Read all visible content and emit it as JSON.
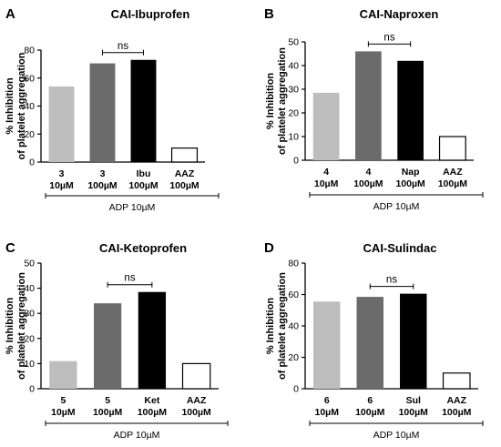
{
  "chart_data": [
    {
      "type": "bar",
      "letter": "A",
      "title": "CAI-Ibuprofen",
      "ylabel_line1": "% Inhibition",
      "ylabel_line2": "of platelet aggregation",
      "ylim": [
        0,
        80
      ],
      "yticks": [
        "0",
        "20",
        "40",
        "60",
        "80"
      ],
      "categories": [
        {
          "line1": "3",
          "line2": "10µM"
        },
        {
          "line1": "3",
          "line2": "100µM"
        },
        {
          "line1": "Ibu",
          "line2": "100µM"
        },
        {
          "line1": "AAZ",
          "line2": "100µM"
        }
      ],
      "values": [
        54,
        70.5,
        73,
        10
      ],
      "colors": [
        "#bdbdbd",
        "#6b6b6b",
        "#000000",
        "#ffffff"
      ],
      "significance": {
        "label": "ns",
        "from": 1,
        "to": 2
      },
      "xnote": "ADP 10µM"
    },
    {
      "type": "bar",
      "letter": "B",
      "title": "CAI-Naproxen",
      "ylabel_line1": "% Inhibition",
      "ylabel_line2": "of platelet aggregation",
      "ylim": [
        0,
        50
      ],
      "yticks": [
        "0",
        "10",
        "20",
        "30",
        "40",
        "50"
      ],
      "categories": [
        {
          "line1": "4",
          "line2": "10µM"
        },
        {
          "line1": "4",
          "line2": "100µM"
        },
        {
          "line1": "Nap",
          "line2": "100µM"
        },
        {
          "line1": "AAZ",
          "line2": "100µM"
        }
      ],
      "values": [
        28.5,
        46,
        42,
        10
      ],
      "colors": [
        "#bdbdbd",
        "#6b6b6b",
        "#000000",
        "#ffffff"
      ],
      "significance": {
        "label": "ns",
        "from": 1,
        "to": 2
      },
      "xnote": "ADP 10µM"
    },
    {
      "type": "bar",
      "letter": "C",
      "title": "CAI-Ketoprofen",
      "ylabel_line1": "% Inhibition",
      "ylabel_line2": "of platelet aggregation",
      "ylim": [
        0,
        50
      ],
      "yticks": [
        "0",
        "10",
        "20",
        "30",
        "40",
        "50"
      ],
      "categories": [
        {
          "line1": "5",
          "line2": "10µM"
        },
        {
          "line1": "5",
          "line2": "100µM"
        },
        {
          "line1": "Ket",
          "line2": "100µM"
        },
        {
          "line1": "AAZ",
          "line2": "100µM"
        }
      ],
      "values": [
        11,
        34,
        38.5,
        10
      ],
      "colors": [
        "#bdbdbd",
        "#6b6b6b",
        "#000000",
        "#ffffff"
      ],
      "significance": {
        "label": "ns",
        "from": 1,
        "to": 2
      },
      "xnote": "ADP 10µM"
    },
    {
      "type": "bar",
      "letter": "D",
      "title": "CAI-Sulindac",
      "ylabel_line1": "% Inhibition",
      "ylabel_line2": "of platelet aggregation",
      "ylim": [
        0,
        80
      ],
      "yticks": [
        "0",
        "20",
        "40",
        "60",
        "80"
      ],
      "categories": [
        {
          "line1": "6",
          "line2": "10µM"
        },
        {
          "line1": "6",
          "line2": "100µM"
        },
        {
          "line1": "Sul",
          "line2": "100µM"
        },
        {
          "line1": "AAZ",
          "line2": "100µM"
        }
      ],
      "values": [
        55.5,
        58.5,
        60.5,
        10
      ],
      "colors": [
        "#bdbdbd",
        "#6b6b6b",
        "#000000",
        "#ffffff"
      ],
      "significance": {
        "label": "ns",
        "from": 1,
        "to": 2
      },
      "xnote": "ADP 10µM"
    }
  ]
}
